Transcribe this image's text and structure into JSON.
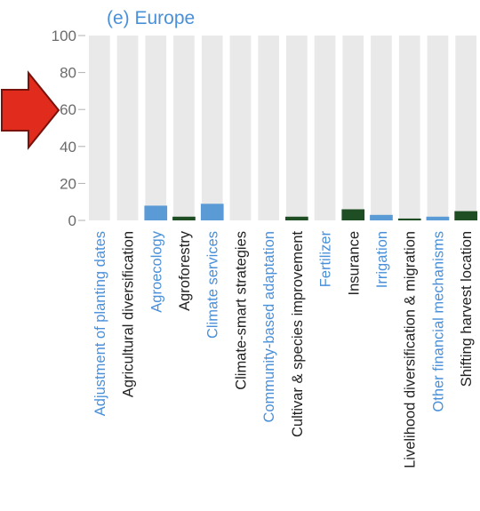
{
  "chart_data": {
    "type": "bar",
    "title": "(e) Europe",
    "title_color": "#4a90d9",
    "ylim": [
      0,
      100
    ],
    "yticks": [
      0,
      20,
      40,
      60,
      80,
      100
    ],
    "grid": "vertical bands",
    "grid_color": "#e9e9e9",
    "categories": [
      "Adjustment of planting dates",
      "Agricultural diversification",
      "Agroecology",
      "Agroforestry",
      "Climate services",
      "Climate-smart strategies",
      "Community-based adaptation",
      "Cultivar & species improvement",
      "Fertilizer",
      "Insurance",
      "Irrigation",
      "Livelihood diversification & migration",
      "Other financial mechanisms",
      "Shifting harvest location"
    ],
    "values": [
      0,
      0,
      8,
      2,
      9,
      0,
      0,
      2,
      0,
      6,
      3,
      1,
      2,
      5
    ],
    "bar_colors": [
      "#5b9bd5",
      "#1f4e24",
      "#5b9bd5",
      "#1f4e24",
      "#5b9bd5",
      "#1f4e24",
      "#5b9bd5",
      "#1f4e24",
      "#5b9bd5",
      "#1f4e24",
      "#5b9bd5",
      "#1f4e24",
      "#5b9bd5",
      "#1f4e24"
    ],
    "label_colors": [
      "#4a90d9",
      "#222222",
      "#4a90d9",
      "#222222",
      "#4a90d9",
      "#222222",
      "#4a90d9",
      "#222222",
      "#4a90d9",
      "#222222",
      "#4a90d9",
      "#222222",
      "#4a90d9",
      "#222222"
    ]
  },
  "overlay": {
    "arrow_icon": "right-arrow-icon",
    "arrow_color": "#e02b1d"
  }
}
